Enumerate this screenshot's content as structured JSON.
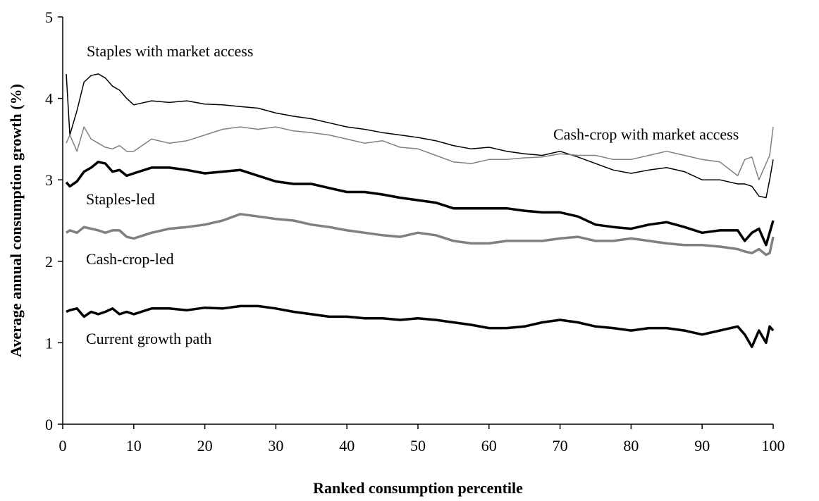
{
  "chart_data": {
    "type": "line",
    "x_label": "Ranked consumption percentile",
    "y_label": "Average annual consumption growth (%)",
    "xlim": [
      0,
      100
    ],
    "xticks": [
      0,
      10,
      20,
      30,
      40,
      50,
      60,
      70,
      80,
      90,
      100
    ],
    "ylim": [
      0,
      5
    ],
    "yticks": [
      0,
      1,
      2,
      3,
      4,
      5
    ],
    "grid": false,
    "x": [
      0.5,
      1,
      2,
      3,
      4,
      5,
      6,
      7,
      8,
      9,
      10,
      12.5,
      15,
      17.5,
      20,
      22.5,
      25,
      27.5,
      30,
      32.5,
      35,
      37.5,
      40,
      42.5,
      45,
      47.5,
      50,
      52.5,
      55,
      57.5,
      60,
      62.5,
      65,
      67.5,
      70,
      72.5,
      75,
      77.5,
      80,
      82.5,
      85,
      87.5,
      90,
      92.5,
      95,
      96,
      97,
      98,
      99,
      99.5,
      100
    ],
    "series": [
      {
        "name": "Staples with market access",
        "color": "#000000",
        "line_width": 1.5,
        "values": [
          4.3,
          3.55,
          3.85,
          4.2,
          4.28,
          4.3,
          4.25,
          4.15,
          4.1,
          4.0,
          3.92,
          3.97,
          3.95,
          3.97,
          3.93,
          3.92,
          3.9,
          3.88,
          3.82,
          3.78,
          3.75,
          3.7,
          3.65,
          3.62,
          3.58,
          3.55,
          3.52,
          3.48,
          3.42,
          3.38,
          3.4,
          3.35,
          3.32,
          3.3,
          3.35,
          3.28,
          3.2,
          3.12,
          3.08,
          3.12,
          3.15,
          3.1,
          3.0,
          3.0,
          2.95,
          2.95,
          2.92,
          2.8,
          2.78,
          3.0,
          3.25
        ]
      },
      {
        "name": "Cash-crop with market access",
        "color": "#808080",
        "line_width": 1.5,
        "values": [
          3.45,
          3.55,
          3.35,
          3.65,
          3.5,
          3.45,
          3.4,
          3.38,
          3.42,
          3.35,
          3.35,
          3.5,
          3.45,
          3.48,
          3.55,
          3.62,
          3.65,
          3.62,
          3.65,
          3.6,
          3.58,
          3.55,
          3.5,
          3.45,
          3.48,
          3.4,
          3.38,
          3.3,
          3.22,
          3.2,
          3.25,
          3.25,
          3.27,
          3.28,
          3.32,
          3.3,
          3.3,
          3.25,
          3.25,
          3.3,
          3.35,
          3.3,
          3.25,
          3.22,
          3.05,
          3.25,
          3.28,
          3.0,
          3.2,
          3.3,
          3.65
        ]
      },
      {
        "name": "Staples-led",
        "color": "#000000",
        "line_width": 3.5,
        "values": [
          2.97,
          2.92,
          2.98,
          3.1,
          3.15,
          3.22,
          3.2,
          3.1,
          3.12,
          3.05,
          3.08,
          3.15,
          3.15,
          3.12,
          3.08,
          3.1,
          3.12,
          3.05,
          2.98,
          2.95,
          2.95,
          2.9,
          2.85,
          2.85,
          2.82,
          2.78,
          2.75,
          2.72,
          2.65,
          2.65,
          2.65,
          2.65,
          2.62,
          2.6,
          2.6,
          2.55,
          2.45,
          2.42,
          2.4,
          2.45,
          2.48,
          2.42,
          2.35,
          2.38,
          2.38,
          2.25,
          2.35,
          2.4,
          2.2,
          2.35,
          2.5
        ]
      },
      {
        "name": "Cash-crop-led",
        "color": "#808080",
        "line_width": 3.5,
        "values": [
          2.35,
          2.38,
          2.35,
          2.42,
          2.4,
          2.38,
          2.35,
          2.38,
          2.38,
          2.3,
          2.28,
          2.35,
          2.4,
          2.42,
          2.45,
          2.5,
          2.58,
          2.55,
          2.52,
          2.5,
          2.45,
          2.42,
          2.38,
          2.35,
          2.32,
          2.3,
          2.35,
          2.32,
          2.25,
          2.22,
          2.22,
          2.25,
          2.25,
          2.25,
          2.28,
          2.3,
          2.25,
          2.25,
          2.28,
          2.25,
          2.22,
          2.2,
          2.2,
          2.18,
          2.15,
          2.12,
          2.1,
          2.15,
          2.08,
          2.1,
          2.3
        ]
      },
      {
        "name": "Current growth path",
        "color": "#000000",
        "line_width": 3.5,
        "values": [
          1.38,
          1.4,
          1.42,
          1.32,
          1.38,
          1.35,
          1.38,
          1.42,
          1.35,
          1.38,
          1.35,
          1.42,
          1.42,
          1.4,
          1.43,
          1.42,
          1.45,
          1.45,
          1.42,
          1.38,
          1.35,
          1.32,
          1.32,
          1.3,
          1.3,
          1.28,
          1.3,
          1.28,
          1.25,
          1.22,
          1.18,
          1.18,
          1.2,
          1.25,
          1.28,
          1.25,
          1.2,
          1.18,
          1.15,
          1.18,
          1.18,
          1.15,
          1.1,
          1.15,
          1.2,
          1.1,
          0.95,
          1.15,
          1.0,
          1.2,
          1.15
        ]
      }
    ]
  }
}
